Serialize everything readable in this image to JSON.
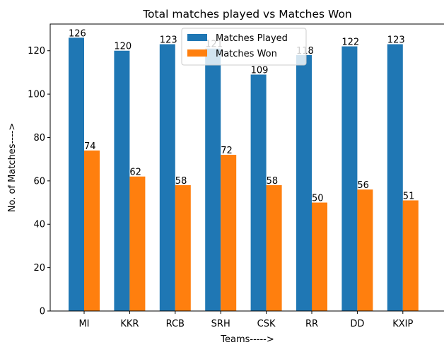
{
  "chart_data": {
    "type": "bar",
    "title": "Total matches played vs Matches Won",
    "xlabel": "Teams----->",
    "ylabel": "No. of Matches---->",
    "categories": [
      "MI",
      "KKR",
      "RCB",
      "SRH",
      "CSK",
      "RR",
      "DD",
      "KXIP"
    ],
    "series": [
      {
        "name": "Matches Played",
        "values": [
          126,
          120,
          123,
          121,
          109,
          118,
          122,
          123
        ],
        "color": "#1f77b4"
      },
      {
        "name": "Matches Won",
        "values": [
          74,
          62,
          58,
          72,
          58,
          50,
          56,
          51
        ],
        "color": "#ff7f0e"
      }
    ],
    "ylim": [
      0,
      132.3
    ],
    "yticks": [
      0,
      20,
      40,
      60,
      80,
      100,
      120
    ],
    "grid": false,
    "legend_position": "top-center"
  }
}
